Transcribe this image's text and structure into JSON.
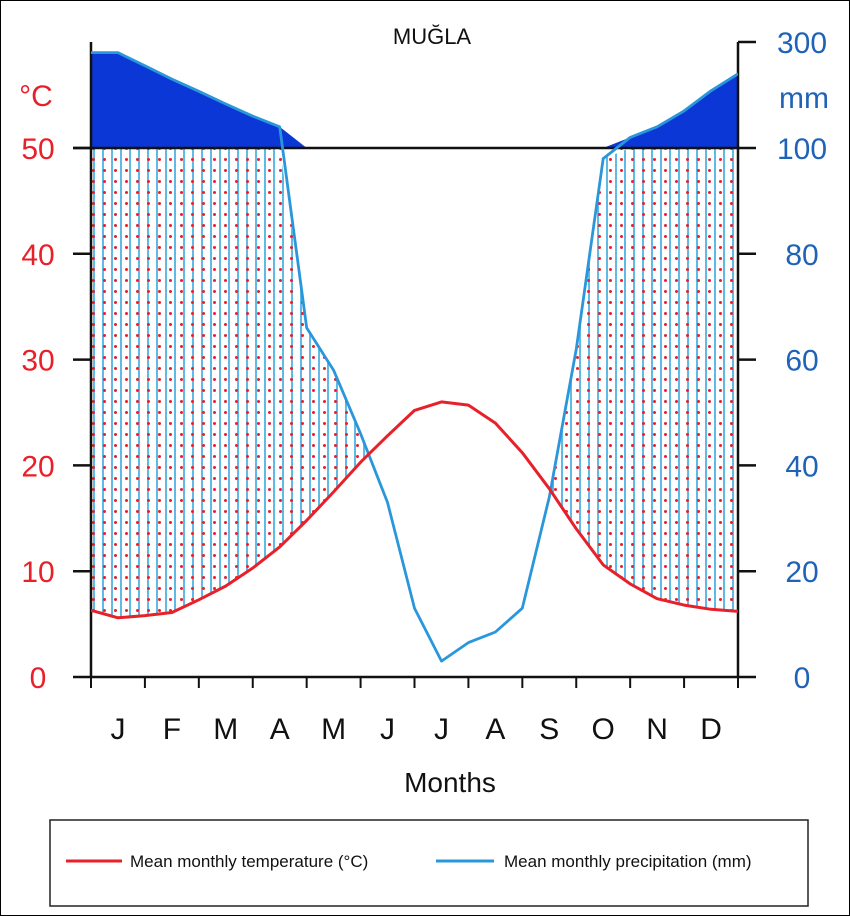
{
  "chart_data": {
    "type": "climate-diagram",
    "title": "MUĞLA",
    "xlabel": "Months",
    "categories": [
      "J",
      "F",
      "M",
      "A",
      "M",
      "J",
      "J",
      "A",
      "S",
      "O",
      "N",
      "D"
    ],
    "left_axis": {
      "unit_label": "°C",
      "ticks": [
        "0",
        "10",
        "20",
        "30",
        "40",
        "50"
      ],
      "tick_values": [
        0,
        10,
        20,
        30,
        40,
        50
      ],
      "color": "#e8202a"
    },
    "right_axis": {
      "unit_label": "mm",
      "ticks": [
        "0",
        "20",
        "40",
        "60",
        "80",
        "100",
        "300"
      ],
      "tick_values": [
        0,
        20,
        40,
        60,
        80,
        100,
        300
      ],
      "color": "#1f63b8"
    },
    "series": [
      {
        "name": "Mean monthly temperature (°C)",
        "color": "#e8202a",
        "x": [
          0,
          0.5,
          1,
          1.5,
          2,
          2.5,
          3,
          3.5,
          4,
          4.5,
          5,
          5.5,
          6,
          6.5,
          7,
          7.5,
          8,
          8.5,
          9,
          9.5,
          10,
          10.5,
          11,
          11.5,
          12
        ],
        "values": [
          6.3,
          5.6,
          5.8,
          6.1,
          7.3,
          8.6,
          10.3,
          12.3,
          14.8,
          17.5,
          20.3,
          22.8,
          25.2,
          26.0,
          25.7,
          24.0,
          21.2,
          17.8,
          14.0,
          10.6,
          8.8,
          7.4,
          6.8,
          6.4,
          6.2
        ]
      },
      {
        "name": "Mean monthly precipitation (mm)",
        "color": "#2a97db",
        "x": [
          0,
          0.5,
          1,
          1.5,
          2,
          2.5,
          3,
          3.5,
          4,
          4.5,
          5,
          5.5,
          6,
          6.5,
          7,
          7.5,
          8,
          8.5,
          9,
          9.5,
          10,
          10.5,
          11,
          11.5,
          12
        ],
        "values": [
          280,
          280,
          255,
          230,
          207,
          183,
          160,
          140,
          66,
          58,
          46,
          33,
          13,
          3,
          6.5,
          8.5,
          13,
          34,
          62,
          98,
          120,
          140,
          170,
          208,
          240
        ]
      }
    ],
    "legend": [
      "Mean monthly temperature (°C)",
      "Mean monthly precipitation (mm)"
    ],
    "legend_position": "bottom",
    "colors": {
      "temperature": "#e8202a",
      "precipitation": "#2a97db",
      "precip_axis": "#1f63b8",
      "surplus_fill": "#0b37d6"
    }
  }
}
